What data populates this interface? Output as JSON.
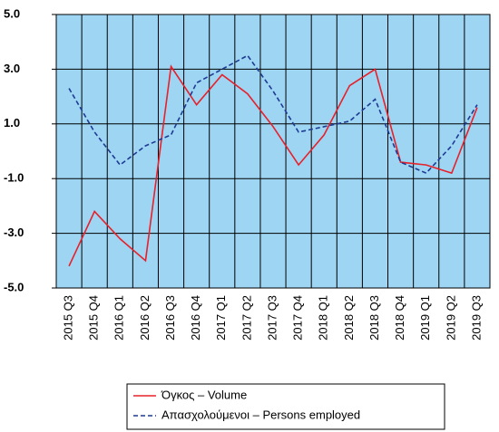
{
  "chart_data": {
    "type": "line",
    "categories": [
      "2015 Q3",
      "2015 Q4",
      "2016 Q1",
      "2016 Q2",
      "2016 Q3",
      "2016 Q4",
      "2017 Q1",
      "2017 Q2",
      "2017 Q3",
      "2017 Q4",
      "2018 Q1",
      "2018 Q2",
      "2018 Q3",
      "2018 Q4",
      "2019 Q1",
      "2019 Q2",
      "2019 Q3"
    ],
    "series": [
      {
        "name": "Όγκος – Volume",
        "color": "#e8202a",
        "line_style": "solid",
        "values": [
          -4.2,
          -2.2,
          -3.2,
          -4.0,
          3.1,
          1.7,
          2.8,
          2.1,
          0.9,
          -0.5,
          0.6,
          2.4,
          3.0,
          -0.4,
          -0.5,
          -0.8,
          1.6
        ]
      },
      {
        "name": "Απασχολούμενοι – Persons employed",
        "color": "#1f3a93",
        "line_style": "dashed",
        "values": [
          2.3,
          0.7,
          -0.5,
          0.2,
          0.6,
          2.5,
          3.0,
          3.5,
          2.2,
          0.7,
          0.9,
          1.1,
          1.9,
          -0.4,
          -0.8,
          0.2,
          1.7
        ]
      }
    ],
    "ylim": [
      -5,
      5
    ],
    "yticks": [
      {
        "value": -5,
        "label": "-5.0"
      },
      {
        "value": -3,
        "label": "-3.0"
      },
      {
        "value": -1,
        "label": "-1.0"
      },
      {
        "value": 1,
        "label": "1.0"
      },
      {
        "value": 3,
        "label": "3.0"
      },
      {
        "value": 5,
        "label": "5.0"
      }
    ],
    "grid": true,
    "background": "#9dd5f3",
    "legend": "bottom"
  }
}
